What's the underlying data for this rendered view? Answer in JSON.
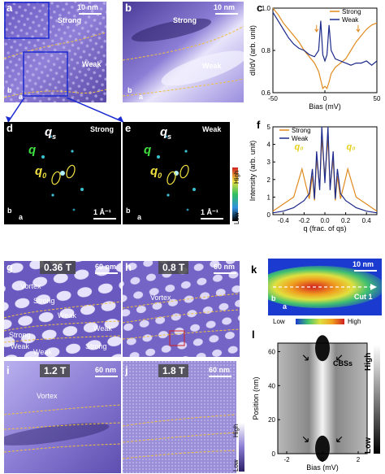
{
  "panels": {
    "a": {
      "label": "a",
      "strong": "Strong",
      "weak": "Weak",
      "scale": "10 nm",
      "axis_b": "b",
      "axis_a": "a"
    },
    "b": {
      "label": "b",
      "strong": "Strong",
      "weak": "Weak",
      "scale": "10 nm",
      "axis_b": "b",
      "axis_a": "a"
    },
    "c": {
      "label": "c"
    },
    "d": {
      "label": "d",
      "title": "Strong",
      "qs": "q",
      "qs_sub": "s",
      "q": "q",
      "q0": "q",
      "q0_sub": "0",
      "scale": "1 Å⁻¹",
      "axis_b": "b",
      "axis_a": "a"
    },
    "e": {
      "label": "e",
      "title": "Weak",
      "qs": "q",
      "qs_sub": "s",
      "q": "q",
      "q0": "q",
      "q0_sub": "0",
      "scale": "1 Å⁻¹",
      "axis_b": "b",
      "axis_a": "a",
      "cbar_high": "High",
      "cbar_low": "Low"
    },
    "f": {
      "label": "f"
    },
    "g": {
      "label": "g",
      "field": "0.36 T",
      "scale": "60 nm",
      "vortex": "Vortex",
      "strong1": "Strong",
      "weak1": "Weak",
      "weak2": "Weak",
      "strong2": "Strong",
      "weak3": "Weak",
      "strong3": "Strong",
      "weak4": "Weak"
    },
    "h": {
      "label": "h",
      "field": "0.8 T",
      "scale": "60 nm",
      "vortex": "Vortex"
    },
    "i": {
      "label": "i",
      "field": "1.2 T",
      "scale": "60 nm",
      "vortex": "Vortex"
    },
    "j": {
      "label": "j",
      "field": "1.8 T",
      "scale": "60 nm",
      "cbar_high": "High",
      "cbar_low": "Low"
    },
    "k": {
      "label": "k",
      "scale": "10 nm",
      "cut": "Cut 1",
      "axis_b": "b",
      "axis_a": "a",
      "cbar_low": "Low",
      "cbar_high": "High"
    },
    "l": {
      "label": "l",
      "cbs": "CBSs",
      "cbar_high": "High",
      "cbar_low": "Low"
    }
  },
  "chart_data": [
    {
      "panel": "c",
      "type": "line",
      "xlabel": "Bias (mV)",
      "ylabel": "dI/dV (arb. unit)",
      "xlim": [
        -50,
        50
      ],
      "ylim": [
        0.6,
        1.0
      ],
      "xticks": [
        -50,
        0,
        50
      ],
      "yticks": [
        0.6,
        0.8,
        1.0
      ],
      "legend": "top-right",
      "series": [
        {
          "name": "Strong",
          "color": "#e08a1e",
          "x": [
            -50,
            -45,
            -40,
            -35,
            -30,
            -25,
            -20,
            -15,
            -10,
            -6,
            -4,
            -2,
            0,
            2,
            4,
            6,
            10,
            15,
            20,
            25,
            30,
            35,
            40,
            45,
            50
          ],
          "y": [
            1.0,
            0.97,
            0.93,
            0.9,
            0.87,
            0.84,
            0.8,
            0.77,
            0.74,
            0.7,
            0.66,
            0.62,
            0.63,
            0.62,
            0.65,
            0.69,
            0.72,
            0.74,
            0.76,
            0.8,
            0.84,
            0.87,
            0.9,
            0.92,
            0.93
          ]
        },
        {
          "name": "Weak",
          "color": "#1b2a8a",
          "x": [
            -50,
            -45,
            -40,
            -35,
            -30,
            -25,
            -20,
            -15,
            -10,
            -6,
            -4,
            -2,
            0,
            2,
            4,
            6,
            10,
            15,
            20,
            25,
            30,
            35,
            40,
            45,
            50
          ],
          "y": [
            0.98,
            0.94,
            0.9,
            0.86,
            0.83,
            0.81,
            0.8,
            0.78,
            0.77,
            0.8,
            0.94,
            0.78,
            0.75,
            0.78,
            0.92,
            0.8,
            0.76,
            0.75,
            0.74,
            0.73,
            0.74,
            0.74,
            0.75,
            0.73,
            0.75
          ]
        }
      ]
    },
    {
      "panel": "f",
      "type": "line",
      "xlabel": "q (frac. of qs)",
      "ylabel": "Intensity (arb. unit)",
      "xlim": [
        -0.5,
        0.5
      ],
      "ylim": [
        0,
        5
      ],
      "xticks": [
        -0.4,
        -0.2,
        0.0,
        0.2,
        0.4
      ],
      "yticks": [
        0,
        1,
        2,
        3,
        4,
        5
      ],
      "legend": "top-left",
      "annotations": [
        "q0",
        "q0"
      ],
      "series": [
        {
          "name": "Strong",
          "color": "#e08a1e",
          "x": [
            -0.5,
            -0.4,
            -0.3,
            -0.25,
            -0.22,
            -0.18,
            -0.15,
            -0.12,
            -0.1,
            -0.08,
            -0.05,
            -0.03,
            0,
            0.03,
            0.05,
            0.08,
            0.1,
            0.12,
            0.15,
            0.18,
            0.22,
            0.25,
            0.3,
            0.4,
            0.5
          ],
          "y": [
            0.2,
            0.6,
            1.0,
            2.0,
            2.6,
            1.6,
            0.9,
            2.2,
            0.8,
            3.2,
            1.6,
            4.3,
            2.2,
            4.3,
            1.6,
            3.2,
            0.8,
            2.2,
            0.9,
            1.6,
            2.6,
            2.0,
            1.0,
            0.6,
            0.2
          ]
        },
        {
          "name": "Weak",
          "color": "#1b2a8a",
          "x": [
            -0.5,
            -0.4,
            -0.3,
            -0.2,
            -0.15,
            -0.12,
            -0.1,
            -0.08,
            -0.05,
            -0.03,
            0,
            0.03,
            0.05,
            0.08,
            0.1,
            0.12,
            0.15,
            0.2,
            0.3,
            0.4,
            0.5
          ],
          "y": [
            0.1,
            0.2,
            0.4,
            0.8,
            1.2,
            2.6,
            0.9,
            3.6,
            1.4,
            5.0,
            1.8,
            5.0,
            1.4,
            3.6,
            0.9,
            2.6,
            1.2,
            0.8,
            0.4,
            0.2,
            0.1
          ]
        }
      ]
    },
    {
      "panel": "l",
      "type": "heatmap",
      "xlabel": "Bias (mV)",
      "ylabel": "Position (nm)",
      "xlim": [
        -2.5,
        2.5
      ],
      "ylim": [
        0,
        65
      ],
      "xticks": [
        -2,
        0,
        2
      ],
      "yticks": [
        0,
        20,
        40,
        60
      ]
    }
  ]
}
